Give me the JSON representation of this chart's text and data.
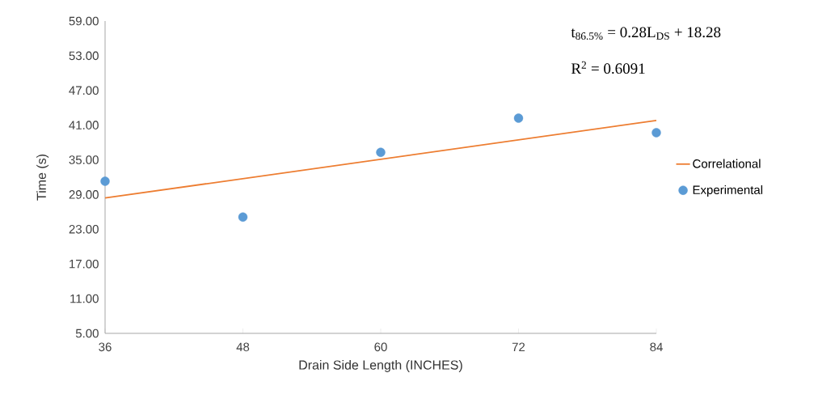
{
  "chart_data": {
    "type": "scatter",
    "xlabel": "Drain Side Length (INCHES)",
    "ylabel": "Time (s)",
    "xlim": [
      36,
      84
    ],
    "xticks": [
      36,
      48,
      60,
      72,
      84
    ],
    "ylim": [
      5,
      59
    ],
    "yticks": [
      {
        "value": 5,
        "label": "5.00"
      },
      {
        "value": 11,
        "label": "11.00"
      },
      {
        "value": 17,
        "label": "17.00"
      },
      {
        "value": 23,
        "label": "23.00"
      },
      {
        "value": 29,
        "label": "29.00"
      },
      {
        "value": 35,
        "label": "35.00"
      },
      {
        "value": 41,
        "label": "41.00"
      },
      {
        "value": 47,
        "label": "47.00"
      },
      {
        "value": 53,
        "label": "53.00"
      },
      {
        "value": 59,
        "label": "59.00"
      }
    ],
    "series": [
      {
        "name": "Correlational",
        "type": "line",
        "color": "#ed7d31",
        "marker": "none",
        "x": [
          36,
          84
        ],
        "values": [
          28.4,
          41.8
        ]
      },
      {
        "name": "Experimental",
        "color": "#5b9bd5",
        "marker": "circle",
        "x": [
          36,
          48,
          60,
          72,
          84
        ],
        "values": [
          31.3,
          25.1,
          36.3,
          42.2,
          39.7
        ]
      }
    ],
    "annotations": [
      "t$_{86.5%}$ = 0.28L$_{DS}$ + 18.28",
      "R$^{2}$ = 0.6091"
    ],
    "grid": false,
    "legend": "right"
  }
}
